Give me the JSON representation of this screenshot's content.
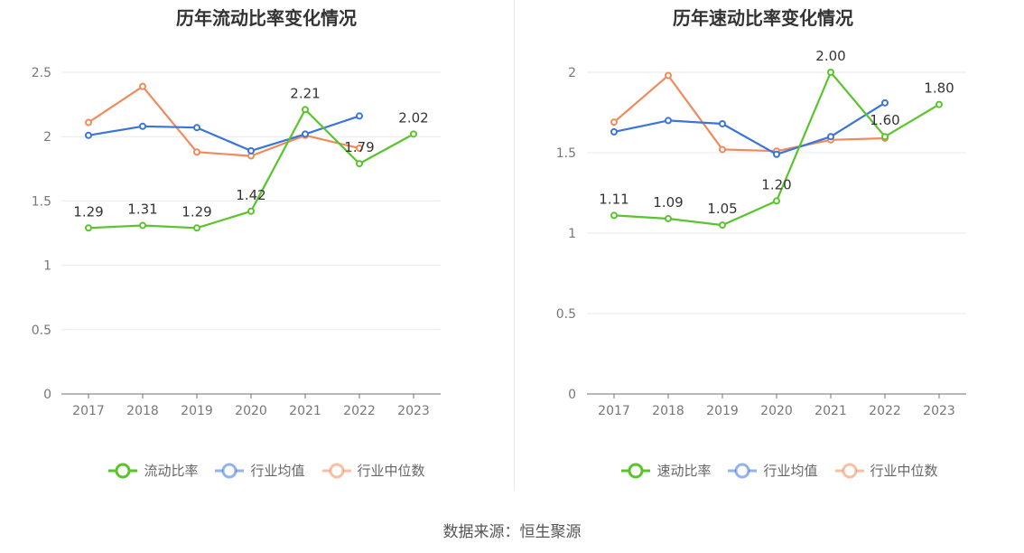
{
  "footer": "数据来源：恒生聚源",
  "chart_data": [
    {
      "type": "line",
      "title": "历年流动比率变化情况",
      "categories": [
        "2017",
        "2018",
        "2019",
        "2020",
        "2021",
        "2022",
        "2023"
      ],
      "ylim": [
        0,
        2.5
      ],
      "yticks": [
        "0",
        "0.5",
        "1",
        "1.5",
        "2",
        "2.5"
      ],
      "series": [
        {
          "name": "流动比率",
          "color": "#5ac42d",
          "values": [
            1.29,
            1.31,
            1.29,
            1.42,
            2.21,
            1.79,
            2.02
          ],
          "labels": [
            "1.29",
            "1.31",
            "1.29",
            "1.42",
            "2.21",
            "1.79",
            "2.02"
          ]
        },
        {
          "name": "行业均值",
          "color": "#3b75d8",
          "values": [
            2.01,
            2.08,
            2.07,
            1.89,
            2.02,
            2.16,
            null
          ]
        },
        {
          "name": "行业中位数",
          "color": "#f08a5d",
          "values": [
            2.11,
            2.39,
            1.88,
            1.85,
            2.01,
            1.91,
            null
          ]
        }
      ]
    },
    {
      "type": "line",
      "title": "历年速动比率变化情况",
      "categories": [
        "2017",
        "2018",
        "2019",
        "2020",
        "2021",
        "2022",
        "2023"
      ],
      "ylim": [
        0,
        2
      ],
      "yticks": [
        "0",
        "0.5",
        "1",
        "1.5",
        "2"
      ],
      "series": [
        {
          "name": "速动比率",
          "color": "#5ac42d",
          "values": [
            1.11,
            1.09,
            1.05,
            1.2,
            2.0,
            1.6,
            1.8
          ],
          "labels": [
            "1.11",
            "1.09",
            "1.05",
            "1.20",
            "2.00",
            "1.60",
            "1.80"
          ]
        },
        {
          "name": "行业均值",
          "color": "#3b75d8",
          "values": [
            1.63,
            1.7,
            1.68,
            1.49,
            1.6,
            1.81,
            null
          ]
        },
        {
          "name": "行业中位数",
          "color": "#f08a5d",
          "values": [
            1.69,
            1.98,
            1.52,
            1.51,
            1.58,
            1.59,
            null
          ]
        }
      ]
    }
  ]
}
